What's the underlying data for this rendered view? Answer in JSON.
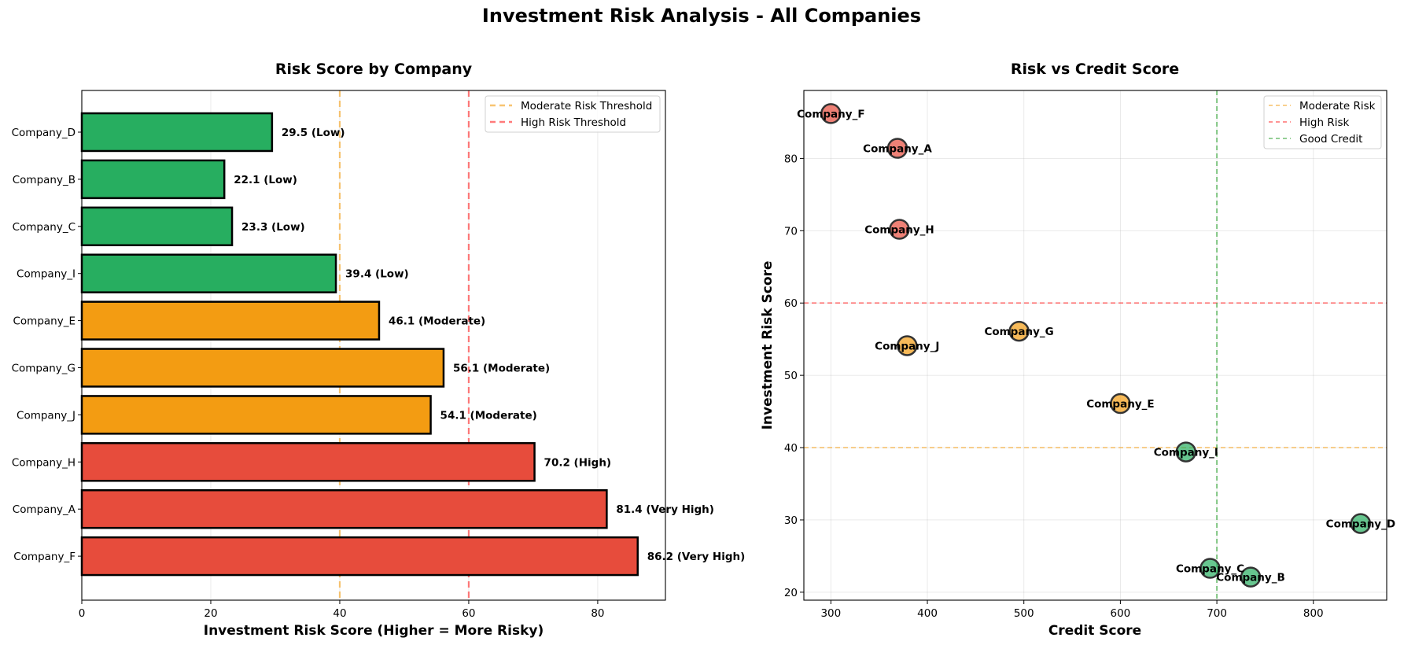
{
  "figure": {
    "suptitle": "Investment Risk Analysis - All Companies"
  },
  "colors": {
    "low": "#27ae60",
    "moderate": "#f39c12",
    "high": "#e74c3c",
    "moderate_line": "#f5b041",
    "high_line": "#ff4d4d",
    "good_credit_line": "#4caf50",
    "bar_edge": "#000000",
    "point_edge": "#333333"
  },
  "chart_data": [
    {
      "type": "bar",
      "orientation": "horizontal",
      "title": "Risk Score by Company",
      "xlabel": "Investment Risk Score (Higher = More Risky)",
      "ylabel": "",
      "xlim": [
        0,
        90.5
      ],
      "xticks": [
        0,
        20,
        40,
        60,
        80
      ],
      "grid": "x",
      "categories": [
        "Company_D",
        "Company_B",
        "Company_C",
        "Company_I",
        "Company_E",
        "Company_G",
        "Company_J",
        "Company_H",
        "Company_A",
        "Company_F"
      ],
      "values": [
        29.5,
        22.1,
        23.3,
        39.4,
        46.1,
        56.1,
        54.1,
        70.2,
        81.4,
        86.2
      ],
      "risk_levels": [
        "Low",
        "Low",
        "Low",
        "Low",
        "Moderate",
        "Moderate",
        "Moderate",
        "High",
        "Very High",
        "Very High"
      ],
      "data_labels": [
        "29.5 (Low)",
        "22.1 (Low)",
        "23.3 (Low)",
        "39.4 (Low)",
        "46.1 (Moderate)",
        "56.1 (Moderate)",
        "54.1 (Moderate)",
        "70.2 (High)",
        "81.4 (Very High)",
        "86.2 (Very High)"
      ],
      "reference_lines": [
        {
          "axis": "x",
          "value": 40,
          "label": "Moderate Risk Threshold",
          "color_key": "moderate_line"
        },
        {
          "axis": "x",
          "value": 60,
          "label": "High Risk Threshold",
          "color_key": "high_line"
        }
      ],
      "legend": {
        "placement": "upper-right",
        "entries": [
          "Moderate Risk Threshold",
          "High Risk Threshold"
        ]
      }
    },
    {
      "type": "scatter",
      "title": "Risk vs Credit Score",
      "xlabel": "Credit Score",
      "ylabel": "Investment Risk Score",
      "xlim": [
        272,
        876
      ],
      "ylim": [
        18.9,
        89.4
      ],
      "xticks": [
        300,
        400,
        500,
        600,
        700,
        800
      ],
      "yticks": [
        20,
        30,
        40,
        50,
        60,
        70,
        80
      ],
      "grid": "both",
      "points": [
        {
          "label": "Company_F",
          "x": 300,
          "y": 86.2,
          "level": "high"
        },
        {
          "label": "Company_A",
          "x": 369,
          "y": 81.4,
          "level": "high"
        },
        {
          "label": "Company_H",
          "x": 371,
          "y": 70.2,
          "level": "high"
        },
        {
          "label": "Company_J",
          "x": 379,
          "y": 54.1,
          "level": "moderate"
        },
        {
          "label": "Company_G",
          "x": 495,
          "y": 56.1,
          "level": "moderate"
        },
        {
          "label": "Company_E",
          "x": 600,
          "y": 46.1,
          "level": "moderate"
        },
        {
          "label": "Company_I",
          "x": 668,
          "y": 39.4,
          "level": "low"
        },
        {
          "label": "Company_D",
          "x": 849,
          "y": 29.5,
          "level": "low"
        },
        {
          "label": "Company_C",
          "x": 693,
          "y": 23.3,
          "level": "low"
        },
        {
          "label": "Company_B",
          "x": 735,
          "y": 22.1,
          "level": "low"
        }
      ],
      "reference_lines": [
        {
          "axis": "y",
          "value": 40,
          "label": "Moderate Risk",
          "color_key": "moderate_line"
        },
        {
          "axis": "y",
          "value": 60,
          "label": "High Risk",
          "color_key": "high_line"
        },
        {
          "axis": "x",
          "value": 700,
          "label": "Good Credit",
          "color_key": "good_credit_line"
        }
      ],
      "legend": {
        "placement": "upper-right",
        "entries": [
          "Moderate Risk",
          "High Risk",
          "Good Credit"
        ]
      }
    }
  ]
}
